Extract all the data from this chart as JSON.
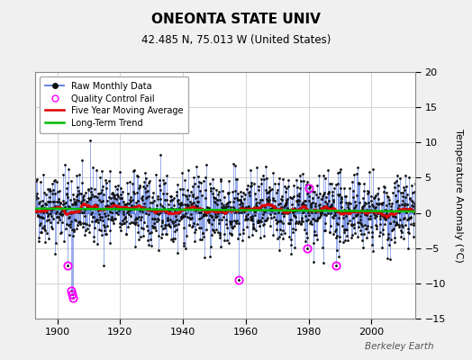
{
  "title": "ONEONTA STATE UNIV",
  "subtitle": "42.485 N, 75.013 W (United States)",
  "ylabel": "Temperature Anomaly (°C)",
  "watermark": "Berkeley Earth",
  "xlim": [
    1893,
    2014
  ],
  "ylim": [
    -15,
    20
  ],
  "yticks": [
    -15,
    -10,
    -5,
    0,
    5,
    10,
    15,
    20
  ],
  "xticks": [
    1900,
    1920,
    1940,
    1960,
    1980,
    2000
  ],
  "fig_bg_color": "#f0f0f0",
  "plot_bg_color": "#ffffff",
  "grid_color": "#cccccc",
  "raw_line_color": "#5577dd",
  "raw_marker_color": "#111111",
  "moving_avg_color": "#dd0000",
  "trend_color": "#00bb00",
  "qc_fail_color": "#ff00ff",
  "seed": 42,
  "start_year": 1893,
  "end_year": 2013,
  "noise_std": 2.5,
  "qc_fail_points": [
    {
      "year": 1903.25,
      "val": -7.5
    },
    {
      "year": 1904.5,
      "val": -11.0
    },
    {
      "year": 1904.75,
      "val": -11.5
    },
    {
      "year": 1905.0,
      "val": -12.0
    },
    {
      "year": 1957.75,
      "val": -9.5
    },
    {
      "year": 1979.5,
      "val": -5.0
    },
    {
      "year": 1980.25,
      "val": 3.5
    },
    {
      "year": 1988.75,
      "val": -7.5
    }
  ]
}
